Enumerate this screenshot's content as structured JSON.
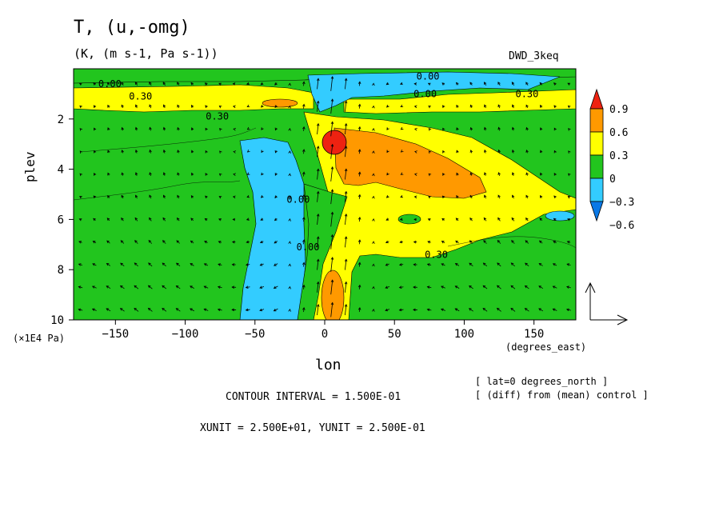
{
  "header": {
    "title": "T, (u,-omg)",
    "subtitle": "(K, (m s-1, Pa s-1))",
    "model_label": "DWD_3keq"
  },
  "axes": {
    "ylabel": "plev",
    "y_unit_label": "(×1E4 Pa)",
    "xlabel": "lon",
    "x_unit_label": "(degrees_east)"
  },
  "notes": {
    "lat": "[ lat=0 degrees_north ]",
    "diff": "[ (diff) from (mean) control ]",
    "contour_interval": "CONTOUR INTERVAL = 1.500E-01",
    "units": "XUNIT = 2.500E+01, YUNIT = 2.500E-01"
  },
  "colors": {
    "lt_neg06": "#0a78e6",
    "neg06_neg03": "#33ccff",
    "neg03_0": "#33ccff",
    "0_03": "#22c51e",
    "03_06": "#ffff00",
    "06_09": "#ff9900",
    "gt_09": "#ee2211"
  },
  "chart_data": {
    "type": "heatmap",
    "title": "T, (u,-omg)",
    "subtitle": "(K, (m s-1, Pa s-1))",
    "xlabel": "lon",
    "ylabel": "plev",
    "x_ticks": [
      -150,
      -100,
      -50,
      0,
      50,
      100,
      150
    ],
    "x_tick_labels": [
      "−150",
      "−100",
      "−50",
      "0",
      "50",
      "100",
      "150"
    ],
    "y_ticks": [
      2,
      4,
      6,
      8,
      10
    ],
    "y_tick_labels": [
      "2",
      "4",
      "6",
      "8",
      "10"
    ],
    "xlim": [
      -180,
      180
    ],
    "ylim": [
      10,
      0
    ],
    "contour_interval": 0.15,
    "colorbar": {
      "levels": [
        -0.6,
        -0.3,
        0,
        0.3,
        0.6,
        0.9
      ],
      "labels": [
        "0.9",
        "0.6",
        "0.3",
        "0",
        "−0.3",
        "−0.6"
      ]
    },
    "contour_labels": [
      {
        "text": "0.00",
        "lon": -154,
        "plev": 0.6
      },
      {
        "text": "0.30",
        "lon": -132,
        "plev": 1.1
      },
      {
        "text": "0.30",
        "lon": -77,
        "plev": 1.9
      },
      {
        "text": "0.00",
        "lon": 74,
        "plev": 0.3
      },
      {
        "text": "0.00",
        "lon": 72,
        "plev": 1.0
      },
      {
        "text": "0.30",
        "lon": 145,
        "plev": 1.0
      },
      {
        "text": "0.00",
        "lon": -19,
        "plev": 5.2
      },
      {
        "text": "0.00",
        "lon": -12,
        "plev": 7.1
      },
      {
        "text": "0.30",
        "lon": 80,
        "plev": 7.4
      }
    ],
    "features": [
      {
        "region": "warm maximum",
        "lon": 8,
        "plev": 3.0,
        "value": ">0.9"
      },
      {
        "region": "warm tongue",
        "lon": 60,
        "plev": 4.0,
        "value": "0.6-0.9"
      },
      {
        "region": "warm lower core",
        "lon": 5,
        "plev": 9.0,
        "value": "0.6-0.9"
      },
      {
        "region": "cool column",
        "lon": -30,
        "plev": 7.0,
        "value": "-0.3-0"
      }
    ]
  }
}
